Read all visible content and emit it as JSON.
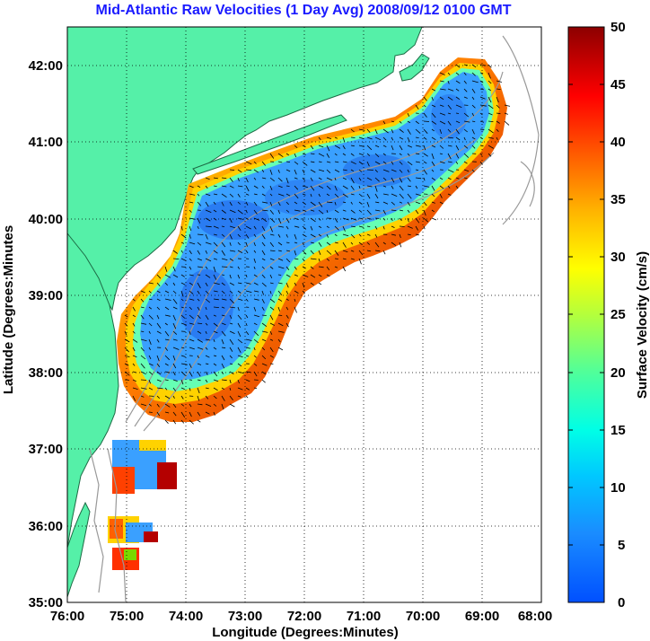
{
  "title": "Mid-Atlantic Raw Velocities (1 Day Avg) 2008/09/12 0100 GMT",
  "xlabel": "Longitude (Degrees:Minutes)",
  "ylabel": "Latitude (Degrees:Minutes",
  "colorbar_label": "Surface Velocity (cm/s)",
  "x_ticks": [
    "76:00",
    "75:00",
    "74:00",
    "73:00",
    "72:00",
    "71:00",
    "70:00",
    "69:00",
    "68:00"
  ],
  "y_ticks": [
    "42:00",
    "41:00",
    "40:00",
    "39:00",
    "38:00",
    "37:00",
    "36:00",
    "35:00"
  ],
  "colorbar_ticks": [
    "50",
    "45",
    "40",
    "35",
    "30",
    "25",
    "20",
    "15",
    "10",
    "5",
    "0"
  ],
  "colors": {
    "land": "#55f0a8",
    "ocean": "#ffffff",
    "title": "#1a1aff",
    "bathymetry": "#999999",
    "low_speed": "#2a8cff",
    "high_speed": "#b40000"
  },
  "chart_data": {
    "type": "heatmap",
    "title": "Mid-Atlantic Raw Velocities (1 Day Avg) 2008/09/12 0100 GMT",
    "xlabel": "Longitude (Degrees:Minutes)",
    "ylabel": "Latitude (Degrees:Minutes",
    "xlim": [
      -76,
      -68
    ],
    "ylim": [
      35,
      42.5
    ],
    "grid": true,
    "colorbar": {
      "label": "Surface Velocity (cm/s)",
      "range": [
        0,
        50
      ],
      "ticks": [
        0,
        5,
        10,
        15,
        20,
        25,
        30,
        35,
        40,
        45,
        50
      ]
    },
    "colormap": "jet",
    "description_of_field": "Surface current speeds mostly 0-10 cm/s over the shelf, rising to 25-50 cm/s along the shelf-break edge"
  }
}
